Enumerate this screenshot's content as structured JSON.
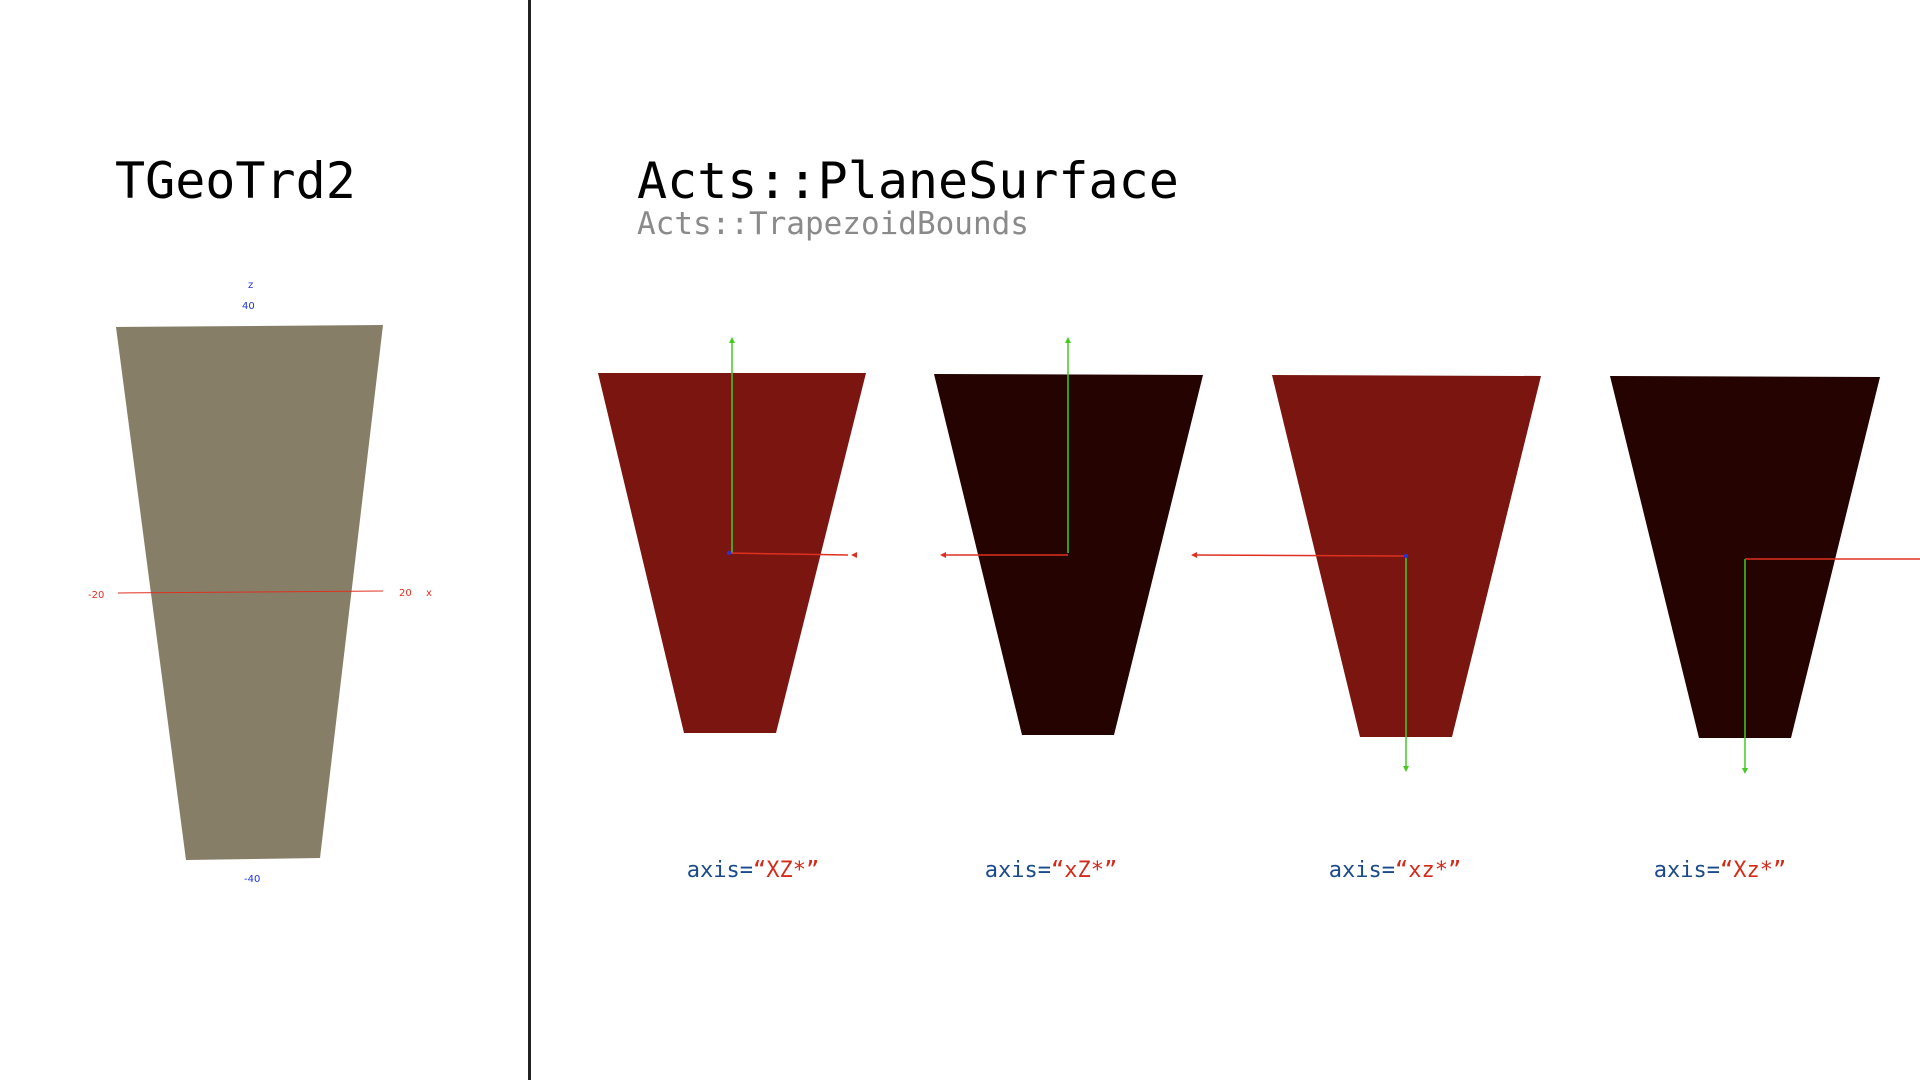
{
  "left_panel": {
    "title": "TGeoTrd2",
    "z_axis_name": "z",
    "z_max_label": "40",
    "z_min_label": "-40",
    "x_axis_name": "x",
    "x_max_label": "20",
    "x_min_label": "-20"
  },
  "right_panel": {
    "title": "Acts::PlaneSurface",
    "subtitle": "Acts::TrapezoidBounds",
    "surfaces": [
      {
        "key": "axis=",
        "value": "“XZ*”",
        "fill": "#7a1510"
      },
      {
        "key": "axis=",
        "value": "“xZ*”",
        "fill": "#250301"
      },
      {
        "key": "axis=",
        "value": "“xz*”",
        "fill": "#7a1510"
      },
      {
        "key": "axis=",
        "value": "“Xz*”",
        "fill": "#250301"
      }
    ]
  },
  "colors": {
    "trd2_fill": "#877e68",
    "x_axis": "#e03020",
    "y_axis": "#44cc22",
    "z_axis": "#2233dd"
  }
}
